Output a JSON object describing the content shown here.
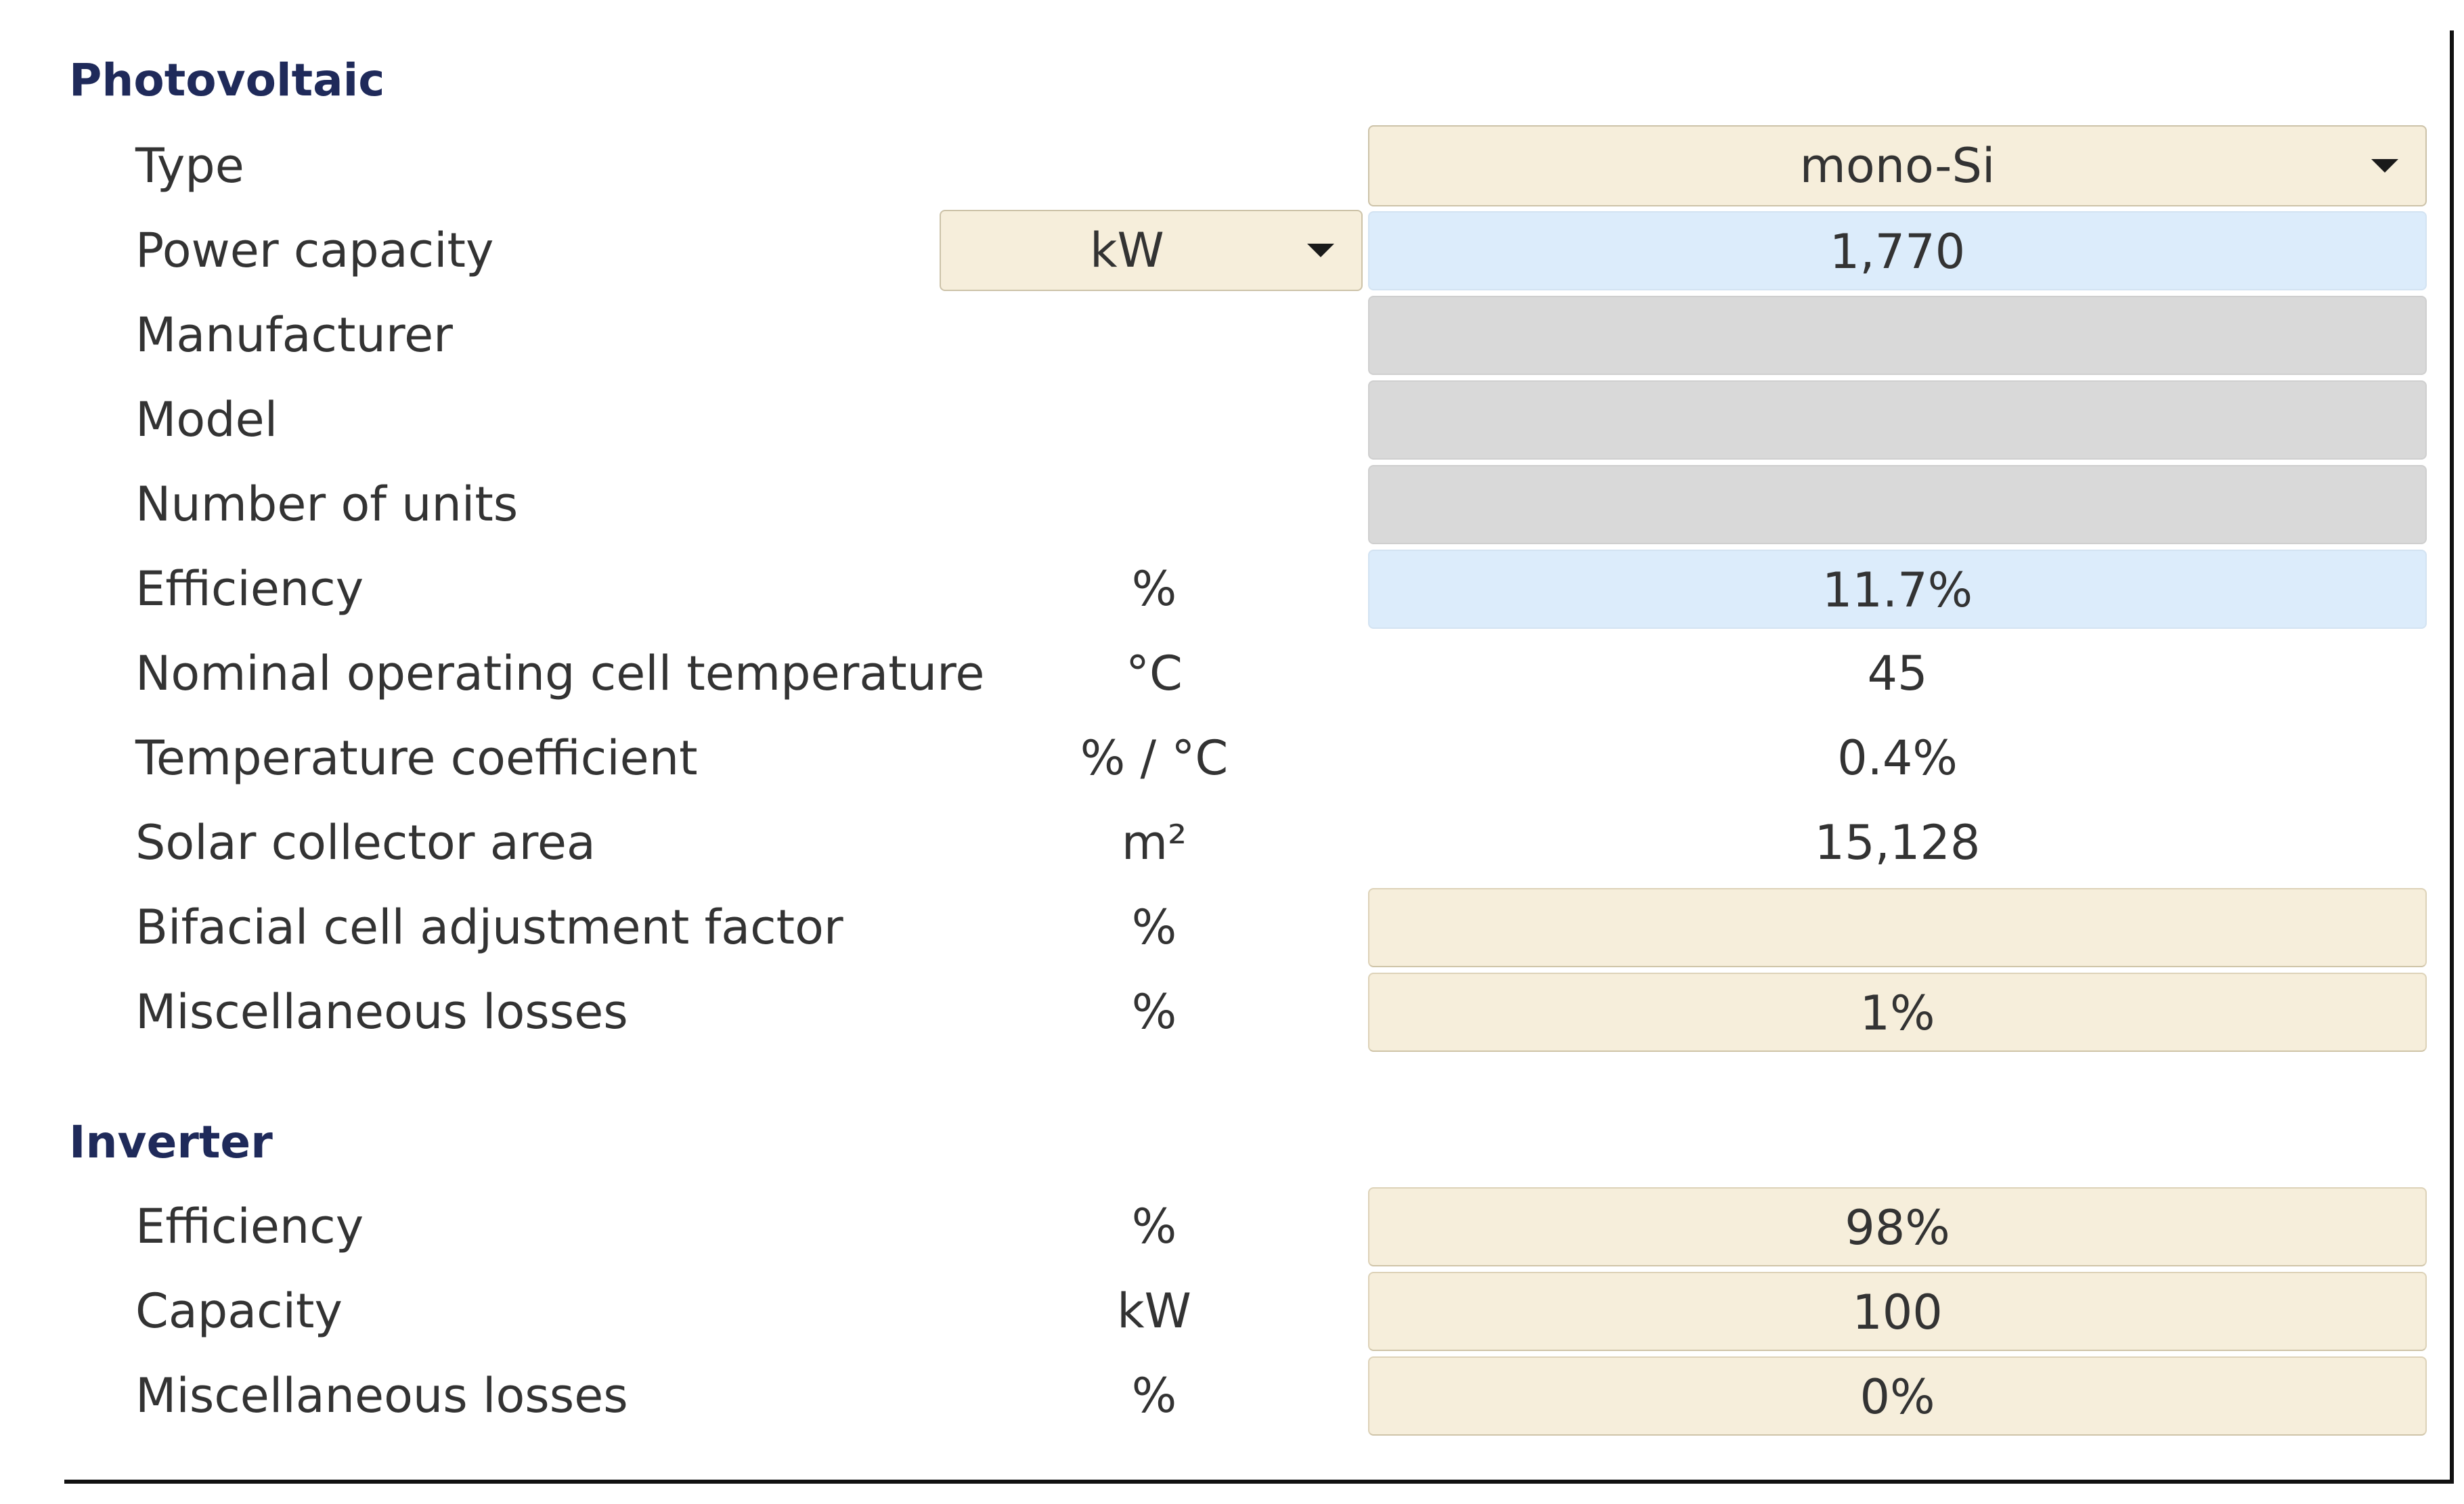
{
  "photovoltaic": {
    "title": "Photovoltaic",
    "type": {
      "label": "Type",
      "value": "mono-Si"
    },
    "power_capacity": {
      "label": "Power capacity",
      "unit": "kW",
      "value": "1,770"
    },
    "manufacturer": {
      "label": "Manufacturer",
      "value": ""
    },
    "model": {
      "label": "Model",
      "value": ""
    },
    "number_of_units": {
      "label": "Number of units",
      "value": ""
    },
    "efficiency": {
      "label": "Efficiency",
      "unit": "%",
      "value": "11.7%"
    },
    "noct": {
      "label": "Nominal operating cell temperature",
      "unit": "°C",
      "value": "45"
    },
    "temp_coefficient": {
      "label": "Temperature coefficient",
      "unit": "% / °C",
      "value": "0.4%"
    },
    "collector_area": {
      "label": "Solar collector area",
      "unit": "m²",
      "value": "15,128"
    },
    "bifacial": {
      "label": "Bifacial cell adjustment factor",
      "unit": "%",
      "value": ""
    },
    "misc_losses": {
      "label": "Miscellaneous losses",
      "unit": "%",
      "value": "1%"
    }
  },
  "inverter": {
    "title": "Inverter",
    "efficiency": {
      "label": "Efficiency",
      "unit": "%",
      "value": "98%"
    },
    "capacity": {
      "label": "Capacity",
      "unit": "kW",
      "value": "100"
    },
    "misc_losses": {
      "label": "Miscellaneous losses",
      "unit": "%",
      "value": "0%"
    }
  },
  "colors": {
    "input_bg": "#f6eedb",
    "calculated_bg": "#dcecfb",
    "disabled_bg": "#d9d9d9",
    "section_title": "#1f2a5a"
  }
}
